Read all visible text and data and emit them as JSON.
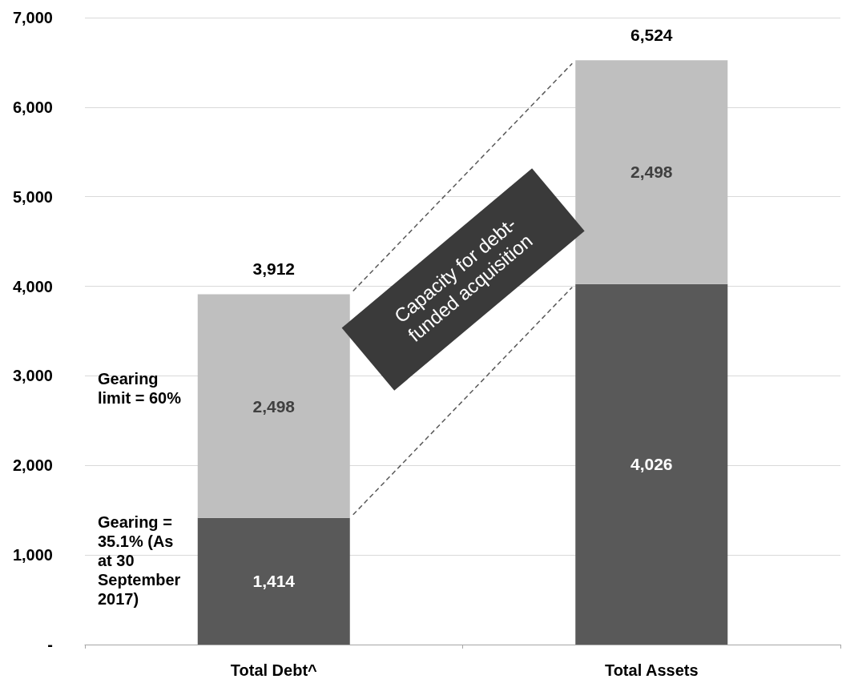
{
  "chart_data": {
    "type": "bar",
    "stacked": true,
    "categories": [
      "Total Debt^",
      "Total Assets"
    ],
    "series": [
      {
        "color": "#595959",
        "values": [
          1414,
          4026
        ],
        "value_labels": [
          "1,414",
          "4,026"
        ]
      },
      {
        "color": "#bfbfbf",
        "values": [
          2498,
          2498
        ],
        "value_labels": [
          "2,498",
          "2,498"
        ]
      }
    ],
    "totals": [
      "3,912",
      "6,524"
    ],
    "ylim": [
      0,
      7000
    ],
    "yticks": [
      {
        "value": 0,
        "label": "-"
      },
      {
        "value": 1000,
        "label": "1,000"
      },
      {
        "value": 2000,
        "label": "2,000"
      },
      {
        "value": 3000,
        "label": "3,000"
      },
      {
        "value": 4000,
        "label": "4,000"
      },
      {
        "value": 5000,
        "label": "5,000"
      },
      {
        "value": 6000,
        "label": "6,000"
      },
      {
        "value": 7000,
        "label": "7,000"
      }
    ],
    "grid": "y",
    "annotations": [
      "Gearing limit = 60%",
      "Gearing = 35.1% (As at 30 September 2017)",
      "Capacity for debt-funded acquisition"
    ]
  }
}
